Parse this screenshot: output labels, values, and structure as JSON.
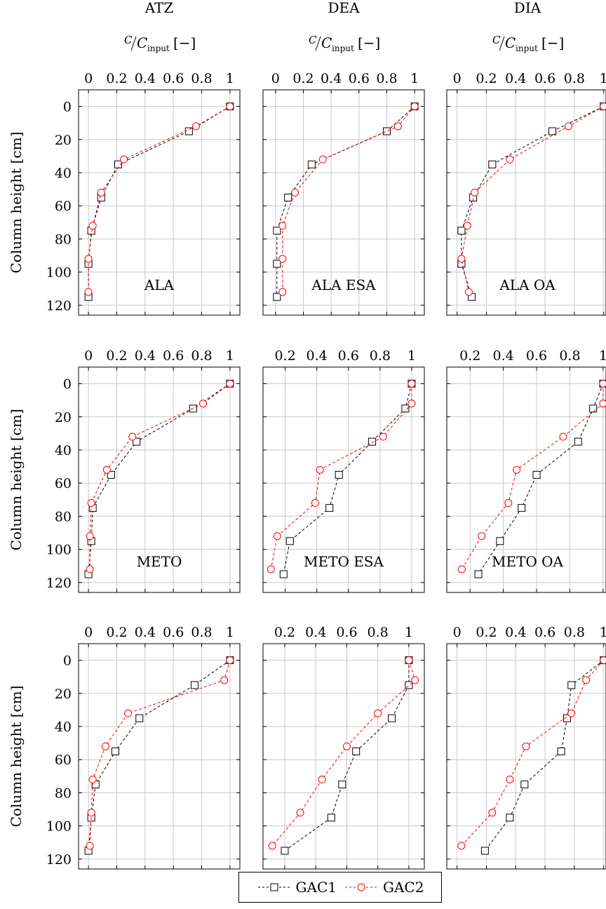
{
  "legend": {
    "items": [
      {
        "label": "GAC1",
        "color": "#000000",
        "marker": "square"
      },
      {
        "label": "GAC2",
        "color": "#ff0000",
        "marker": "circle"
      }
    ]
  },
  "axis_text": {
    "xlabel_main": "C",
    "xlabel_over": "C",
    "xlabel_sub": "input",
    "xlabel_unit": "[−]",
    "ylabel": "Column height [cm]"
  },
  "chart_data": [
    {
      "type": "line",
      "title": "ATZ",
      "xlabel": "C/C_input [−]",
      "ylabel": "Column height [cm]",
      "xlim": [
        -0.07,
        1.07
      ],
      "xticks": [
        0,
        0.2,
        0.4,
        0.6,
        0.8,
        1
      ],
      "xtick_labels": [
        "0",
        "0.2",
        "0.4",
        "0.6",
        "0.8",
        "1"
      ],
      "ylim": [
        126,
        -10
      ],
      "yticks": [
        0,
        20,
        40,
        60,
        80,
        100,
        120
      ],
      "grid": true,
      "legend": "bottom-center",
      "series": [
        {
          "name": "GAC1",
          "x": [
            1.0,
            0.71,
            0.21,
            0.09,
            0.02,
            0.0,
            0.0
          ],
          "y": [
            0,
            15,
            35,
            55,
            75,
            95,
            115
          ]
        },
        {
          "name": "GAC2",
          "x": [
            1.0,
            0.76,
            0.25,
            0.09,
            0.03,
            0.0,
            0.0
          ],
          "y": [
            0,
            12,
            32,
            52,
            72,
            92,
            112
          ]
        }
      ]
    },
    {
      "type": "line",
      "title": "DEA",
      "xlabel": "C/C_input [−]",
      "ylabel": "Column height [cm]",
      "xlim": [
        -0.09,
        1.07
      ],
      "xticks": [
        0,
        0.2,
        0.4,
        0.6,
        0.8,
        1
      ],
      "xtick_labels": [
        "0",
        "0.2",
        "0.4",
        "0.6",
        "0.8",
        "1"
      ],
      "ylim": [
        126,
        -10
      ],
      "yticks": [
        0,
        20,
        40,
        60,
        80,
        100,
        120
      ],
      "grid": true,
      "legend": "bottom-center",
      "series": [
        {
          "name": "GAC1",
          "x": [
            1.0,
            0.8,
            0.26,
            0.09,
            0.01,
            0.01,
            0.01
          ],
          "y": [
            0,
            15,
            35,
            55,
            75,
            95,
            115
          ]
        },
        {
          "name": "GAC2",
          "x": [
            1.0,
            0.88,
            0.34,
            0.14,
            0.05,
            0.05,
            0.05
          ],
          "y": [
            0,
            12,
            32,
            52,
            72,
            92,
            112
          ]
        }
      ]
    },
    {
      "type": "line",
      "title": "DIA",
      "xlabel": "C/C_input [−]",
      "ylabel": "Column height [cm]",
      "xlim": [
        -0.07,
        1.03
      ],
      "xticks": [
        0,
        0.2,
        0.4,
        0.6,
        0.8,
        1
      ],
      "xtick_labels": [
        "0",
        "0.2",
        "0.4",
        "0.6",
        "0.8",
        "1"
      ],
      "ylim": [
        126,
        -10
      ],
      "yticks": [
        0,
        20,
        40,
        60,
        80,
        100,
        120
      ],
      "grid": true,
      "legend": "bottom-center",
      "series": [
        {
          "name": "GAC1",
          "x": [
            1.0,
            0.65,
            0.24,
            0.11,
            0.03,
            0.03,
            0.1
          ],
          "y": [
            0,
            15,
            35,
            55,
            75,
            95,
            115
          ]
        },
        {
          "name": "GAC2",
          "x": [
            1.0,
            0.76,
            0.36,
            0.12,
            0.07,
            0.03,
            0.08
          ],
          "y": [
            0,
            12,
            32,
            52,
            72,
            92,
            112
          ]
        }
      ]
    },
    {
      "type": "line",
      "title": "ALA",
      "xlabel": "C/C_input [−]",
      "ylabel": "Column height [cm]",
      "xlim": [
        -0.07,
        1.07
      ],
      "xticks": [
        0,
        0.2,
        0.4,
        0.6,
        0.8,
        1
      ],
      "xtick_labels": [
        "0",
        "0.2",
        "0.4",
        "0.6",
        "0.8",
        "1"
      ],
      "ylim": [
        126,
        -10
      ],
      "yticks": [
        0,
        20,
        40,
        60,
        80,
        100,
        120
      ],
      "grid": true,
      "legend": "bottom-center",
      "series": [
        {
          "name": "GAC1",
          "x": [
            1.0,
            0.74,
            0.34,
            0.16,
            0.03,
            0.02,
            0.0
          ],
          "y": [
            0,
            15,
            35,
            55,
            75,
            95,
            115
          ]
        },
        {
          "name": "GAC2",
          "x": [
            1.0,
            0.81,
            0.31,
            0.13,
            0.02,
            0.01,
            0.01
          ],
          "y": [
            0,
            12,
            32,
            52,
            72,
            92,
            112
          ]
        }
      ]
    },
    {
      "type": "line",
      "title": "ALA ESA",
      "xlabel": "C/C_input [−]",
      "ylabel": "Column height [cm]",
      "xlim": [
        0.06,
        1.08
      ],
      "xticks": [
        0.2,
        0.4,
        0.6,
        0.8,
        1
      ],
      "xtick_labels": [
        "0.2",
        "0.4",
        "0.6",
        "0.8",
        "1"
      ],
      "ylim": [
        126,
        -10
      ],
      "yticks": [
        0,
        20,
        40,
        60,
        80,
        100,
        120
      ],
      "grid": true,
      "legend": "bottom-center",
      "series": [
        {
          "name": "GAC1",
          "x": [
            1.0,
            0.96,
            0.75,
            0.54,
            0.48,
            0.23,
            0.19
          ],
          "y": [
            0,
            15,
            35,
            55,
            75,
            95,
            115
          ]
        },
        {
          "name": "GAC2",
          "x": [
            1.0,
            1.0,
            0.82,
            0.42,
            0.39,
            0.15,
            0.11
          ],
          "y": [
            0,
            12,
            32,
            52,
            72,
            92,
            112
          ]
        }
      ]
    },
    {
      "type": "line",
      "title": "ALA OA",
      "xlabel": "C/C_input [−]",
      "ylabel": "Column height [cm]",
      "xlim": [
        0.06,
        1.03
      ],
      "xticks": [
        0.2,
        0.4,
        0.6,
        0.8,
        1
      ],
      "xtick_labels": [
        "0.2",
        "0.4",
        "0.6",
        "0.8",
        "1"
      ],
      "ylim": [
        126,
        -10
      ],
      "yticks": [
        0,
        20,
        40,
        60,
        80,
        100,
        120
      ],
      "grid": true,
      "legend": "bottom-center",
      "series": [
        {
          "name": "GAC1",
          "x": [
            1.0,
            0.94,
            0.85,
            0.6,
            0.51,
            0.38,
            0.25
          ],
          "y": [
            0,
            15,
            35,
            55,
            75,
            95,
            115
          ]
        },
        {
          "name": "GAC2",
          "x": [
            1.0,
            1.0,
            0.76,
            0.48,
            0.43,
            0.27,
            0.15
          ],
          "y": [
            0,
            12,
            32,
            52,
            72,
            92,
            112
          ]
        }
      ]
    },
    {
      "type": "line",
      "title": "METO",
      "xlabel": "C/C_input [−]",
      "ylabel": "Column height [cm]",
      "xlim": [
        -0.07,
        1.07
      ],
      "xticks": [
        0,
        0.2,
        0.4,
        0.6,
        0.8,
        1
      ],
      "xtick_labels": [
        "0",
        "0.2",
        "0.4",
        "0.6",
        "0.8",
        "1"
      ],
      "ylim": [
        126,
        -10
      ],
      "yticks": [
        0,
        20,
        40,
        60,
        80,
        100,
        120
      ],
      "grid": true,
      "legend": "bottom-center",
      "series": [
        {
          "name": "GAC1",
          "x": [
            1.0,
            0.75,
            0.36,
            0.19,
            0.05,
            0.02,
            0.0
          ],
          "y": [
            0,
            15,
            35,
            55,
            75,
            95,
            115
          ]
        },
        {
          "name": "GAC2",
          "x": [
            1.0,
            0.96,
            0.28,
            0.12,
            0.03,
            0.02,
            0.01
          ],
          "y": [
            0,
            12,
            32,
            52,
            72,
            92,
            112
          ]
        }
      ]
    },
    {
      "type": "line",
      "title": "METO ESA",
      "xlabel": "C/C_input [−]",
      "ylabel": "Column height [cm]",
      "xlim": [
        0.06,
        1.1
      ],
      "xticks": [
        0.2,
        0.4,
        0.6,
        0.8,
        1
      ],
      "xtick_labels": [
        "0.2",
        "0.4",
        "0.6",
        "0.8",
        "1"
      ],
      "ylim": [
        126,
        -10
      ],
      "yticks": [
        0,
        20,
        40,
        60,
        80,
        100,
        120
      ],
      "grid": true,
      "legend": "bottom-center",
      "series": [
        {
          "name": "GAC1",
          "x": [
            1.0,
            1.0,
            0.89,
            0.66,
            0.57,
            0.5,
            0.2
          ],
          "y": [
            0,
            15,
            35,
            55,
            75,
            95,
            115
          ]
        },
        {
          "name": "GAC2",
          "x": [
            1.0,
            1.04,
            0.8,
            0.6,
            0.44,
            0.3,
            0.12
          ],
          "y": [
            0,
            12,
            32,
            52,
            72,
            92,
            112
          ]
        }
      ]
    },
    {
      "type": "line",
      "title": "METO OA",
      "xlabel": "C/C_input [−]",
      "ylabel": "Column height [cm]",
      "xlim": [
        -0.07,
        1.03
      ],
      "xticks": [
        0,
        0.2,
        0.4,
        0.6,
        0.8,
        1
      ],
      "xtick_labels": [
        "0",
        "0.2",
        "0.4",
        "0.6",
        "0.8",
        "1"
      ],
      "ylim": [
        126,
        -10
      ],
      "yticks": [
        0,
        20,
        40,
        60,
        80,
        100,
        120
      ],
      "grid": true,
      "legend": "bottom-center",
      "series": [
        {
          "name": "GAC1",
          "x": [
            1.0,
            0.78,
            0.75,
            0.71,
            0.46,
            0.36,
            0.19
          ],
          "y": [
            0,
            15,
            35,
            55,
            75,
            95,
            115
          ]
        },
        {
          "name": "GAC2",
          "x": [
            1.0,
            0.88,
            0.78,
            0.47,
            0.36,
            0.24,
            0.03
          ],
          "y": [
            0,
            12,
            32,
            52,
            72,
            92,
            112
          ]
        }
      ]
    }
  ]
}
